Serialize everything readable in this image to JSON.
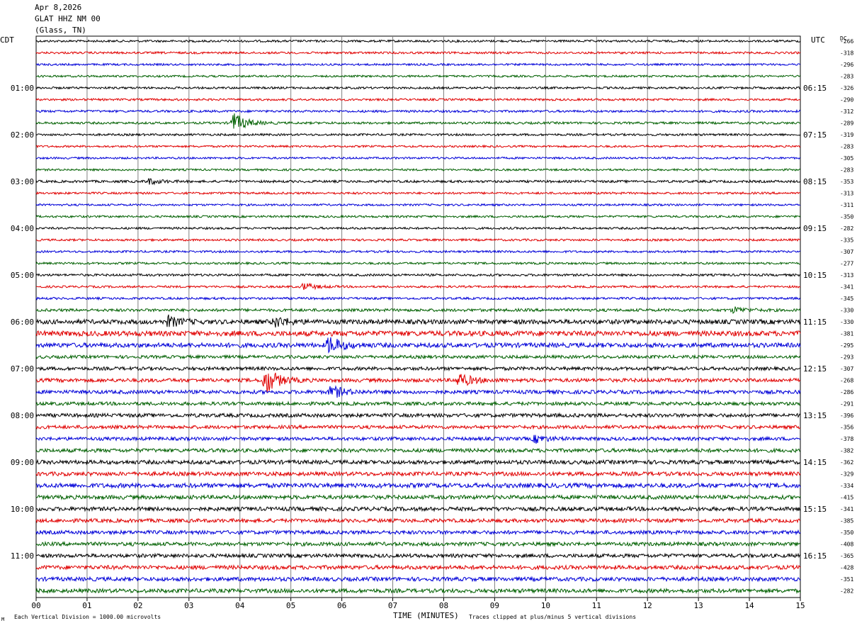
{
  "header": {
    "date": "Apr 8,2026",
    "station": "GLAT HHZ NM 00",
    "location": "(Glass, TN)"
  },
  "labels": {
    "left_tz": "CDT",
    "right_tz": "UTC",
    "dc": "DC",
    "xlabel": "TIME (MINUTES)",
    "division": "Each Vertical Division = 1000.00 microvolts",
    "clip": "Traces clipped at plus/minus 5 vertical divisions",
    "mark": "M"
  },
  "colors": {
    "traces": [
      "#000000",
      "#e00000",
      "#0000d8",
      "#006000"
    ],
    "grid": "#808080"
  },
  "chart_data": {
    "type": "line",
    "title": "",
    "xlabel": "TIME (MINUTES)",
    "x_ticks": [
      "00",
      "01",
      "02",
      "03",
      "04",
      "05",
      "06",
      "07",
      "08",
      "09",
      "10",
      "11",
      "12",
      "13",
      "14",
      "15"
    ],
    "xlim": [
      0,
      15
    ],
    "minutes_per_trace": 15,
    "left_hour_labels": [
      "01:00",
      "02:00",
      "03:00",
      "04:00",
      "05:00",
      "06:00",
      "07:00",
      "08:00",
      "09:00",
      "10:00",
      "11:00"
    ],
    "right_hour_labels": [
      "06:15",
      "07:15",
      "08:15",
      "09:15",
      "10:15",
      "11:15",
      "12:15",
      "13:15",
      "14:15",
      "15:15",
      "16:15"
    ],
    "dc_offsets": [
      -266,
      -318,
      -296,
      -283,
      -326,
      -290,
      -312,
      -289,
      -319,
      -283,
      -305,
      -283,
      -353,
      -313,
      -311,
      -350,
      -282,
      -335,
      -307,
      -277,
      -313,
      -341,
      -345,
      -330,
      -330,
      -381,
      -295,
      -293,
      -307,
      -268,
      -286,
      -291,
      -396,
      -356,
      -378,
      -382,
      -362,
      -329,
      -334,
      -415,
      -341,
      -385,
      -350,
      -408,
      -365,
      -428,
      -351,
      -282
    ],
    "trace_noise": [
      1.5,
      1.5,
      1.4,
      1.4,
      1.5,
      1.5,
      1.6,
      1.6,
      1.5,
      1.4,
      1.4,
      1.4,
      1.7,
      1.5,
      1.4,
      1.5,
      1.5,
      1.5,
      1.5,
      1.5,
      1.6,
      1.5,
      1.6,
      2.0,
      3.2,
      3.6,
      3.2,
      2.2,
      2.4,
      2.6,
      2.6,
      2.4,
      2.6,
      2.4,
      2.4,
      2.6,
      2.8,
      2.8,
      3.2,
      2.8,
      2.8,
      2.6,
      2.6,
      2.6,
      2.6,
      2.8,
      2.8,
      2.8
    ],
    "events": [
      {
        "trace": 7,
        "minute": 3.88,
        "amplitude": 14
      },
      {
        "trace": 12,
        "minute": 2.2,
        "amplitude": 4
      },
      {
        "trace": 21,
        "minute": 5.25,
        "amplitude": 5
      },
      {
        "trace": 23,
        "minute": 13.7,
        "amplitude": 4
      },
      {
        "trace": 24,
        "minute": 2.6,
        "amplitude": 7
      },
      {
        "trace": 24,
        "minute": 4.7,
        "amplitude": 7
      },
      {
        "trace": 26,
        "minute": 5.75,
        "amplitude": 12
      },
      {
        "trace": 29,
        "minute": 4.5,
        "amplitude": 20
      },
      {
        "trace": 29,
        "minute": 8.3,
        "amplitude": 10
      },
      {
        "trace": 30,
        "minute": 5.8,
        "amplitude": 9
      },
      {
        "trace": 34,
        "minute": 9.8,
        "amplitude": 5
      }
    ]
  }
}
